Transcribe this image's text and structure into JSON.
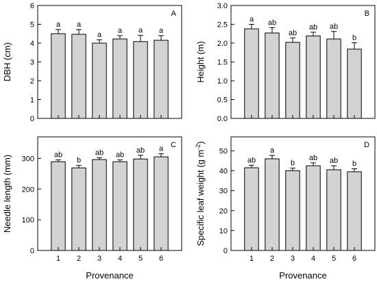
{
  "chart_data": [
    {
      "panel": "A",
      "type": "bar",
      "categories": [
        "1",
        "2",
        "3",
        "4",
        "5",
        "6"
      ],
      "values": [
        4.5,
        4.47,
        4.0,
        4.22,
        4.08,
        4.15
      ],
      "errors": [
        0.22,
        0.25,
        0.18,
        0.18,
        0.33,
        0.25
      ],
      "labels": [
        "a",
        "a",
        "a",
        "a",
        "a",
        "a"
      ],
      "ylabel": "DBH (cm)",
      "xlabel": "",
      "ylim": [
        0,
        6
      ],
      "yticks": [
        0,
        1,
        2,
        3,
        4,
        5,
        6
      ],
      "yticklabels": [
        "0",
        "1",
        "2",
        "3",
        "4",
        "5",
        "6"
      ]
    },
    {
      "panel": "B",
      "type": "bar",
      "categories": [
        "1",
        "2",
        "3",
        "4",
        "5",
        "6"
      ],
      "values": [
        2.38,
        2.27,
        2.02,
        2.19,
        2.11,
        1.84
      ],
      "errors": [
        0.12,
        0.14,
        0.12,
        0.1,
        0.2,
        0.17
      ],
      "labels": [
        "a",
        "ab",
        "ab",
        "ab",
        "ab",
        "b"
      ],
      "ylabel": "Height (m)",
      "xlabel": "",
      "ylim": [
        0,
        3
      ],
      "yticks": [
        0,
        0.5,
        1,
        1.5,
        2,
        2.5,
        3
      ],
      "yticklabels": [
        "0.0",
        "0.5",
        "1.0",
        "1.5",
        "2.0",
        "2.5",
        "3.0"
      ]
    },
    {
      "panel": "C",
      "type": "bar",
      "categories": [
        "1",
        "2",
        "3",
        "4",
        "5",
        "6"
      ],
      "values": [
        289,
        269,
        296,
        289,
        298,
        305
      ],
      "errors": [
        6,
        8,
        6,
        6,
        12,
        10
      ],
      "labels": [
        "ab",
        "b",
        "ab",
        "ab",
        "ab",
        "a"
      ],
      "ylabel": "Needle length (mm)",
      "xlabel": "Provenance",
      "ylim": [
        0,
        370
      ],
      "yticks": [
        0,
        100,
        200,
        300
      ],
      "yticklabels": [
        "0",
        "100",
        "200",
        "300"
      ]
    },
    {
      "panel": "D",
      "type": "bar",
      "categories": [
        "1",
        "2",
        "3",
        "4",
        "5",
        "6"
      ],
      "values": [
        41.5,
        46.0,
        40.0,
        42.5,
        40.5,
        39.5
      ],
      "errors": [
        1.3,
        1.7,
        1.3,
        1.5,
        2.0,
        1.5
      ],
      "labels": [
        "ab",
        "a",
        "b",
        "ab",
        "ab",
        "b"
      ],
      "ylabel": "Specific leaf weight (g m",
      "ylabel_sup": "-2",
      "ylabel_end": ")",
      "xlabel": "Provenance",
      "ylim": [
        0,
        57
      ],
      "yticks": [
        0,
        10,
        20,
        30,
        40,
        50
      ],
      "yticklabels": [
        "0",
        "10",
        "20",
        "30",
        "40",
        "50"
      ]
    }
  ]
}
